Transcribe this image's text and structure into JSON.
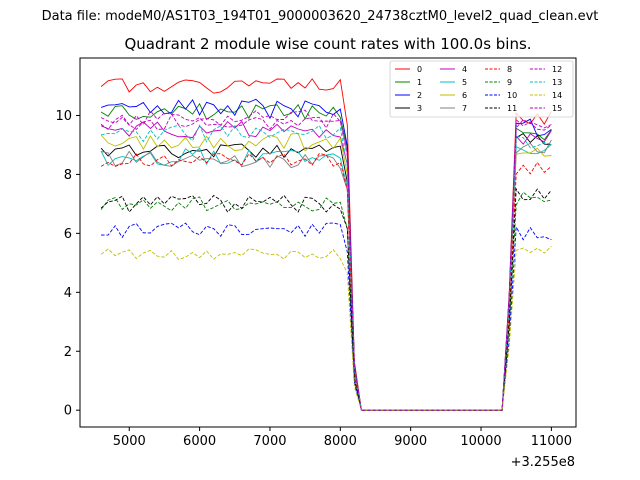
{
  "figure": {
    "suptitle": "Data file: modeM0/AS1T03_194T01_9000003620_24738cztM0_level2_quad_clean.evt"
  },
  "chart_data": {
    "type": "line",
    "title": "Quadrant 2 module wise count rates with 100.0s bins.",
    "xlabel": "",
    "ylabel": "",
    "x_offset_label": "+3.255e8",
    "xlim": [
      4300,
      11350
    ],
    "ylim": [
      -0.57,
      11.95
    ],
    "xticks": [
      5000,
      6000,
      7000,
      8000,
      9000,
      10000,
      11000
    ],
    "yticks": [
      0,
      2,
      4,
      6,
      8,
      10
    ],
    "grid": false,
    "legend_position": "top-right",
    "x": {
      "start": 4600,
      "step": 100,
      "count": 65
    },
    "series": [
      {
        "name": "0",
        "color": "#ff0000",
        "dash": "solid",
        "level": 11.0,
        "noise": 0.25,
        "end_level": 9.9
      },
      {
        "name": "1",
        "color": "#008000",
        "dash": "solid",
        "level": 10.1,
        "noise": 0.3,
        "end_level": 9.4
      },
      {
        "name": "2",
        "color": "#0000ff",
        "dash": "solid",
        "level": 10.2,
        "noise": 0.35,
        "end_level": 9.6
      },
      {
        "name": "3",
        "color": "#000000",
        "dash": "solid",
        "level": 8.8,
        "noise": 0.25,
        "end_level": 9.2
      },
      {
        "name": "4",
        "color": "#bf00bf",
        "dash": "solid",
        "level": 9.5,
        "noise": 0.3,
        "end_level": 9.3
      },
      {
        "name": "5",
        "color": "#00bfbf",
        "dash": "solid",
        "level": 8.6,
        "noise": 0.3,
        "end_level": 9.0
      },
      {
        "name": "6",
        "color": "#bfbf00",
        "dash": "solid",
        "level": 9.1,
        "noise": 0.3,
        "end_level": 8.8
      },
      {
        "name": "7",
        "color": "#808080",
        "dash": "solid",
        "level": 8.5,
        "noise": 0.3,
        "end_level": 8.9
      },
      {
        "name": "8",
        "color": "#ff0000",
        "dash": "dashed",
        "level": 8.5,
        "noise": 0.25,
        "end_level": 8.2
      },
      {
        "name": "9",
        "color": "#008000",
        "dash": "dashed",
        "level": 7.0,
        "noise": 0.25,
        "end_level": 7.2
      },
      {
        "name": "10",
        "color": "#0000ff",
        "dash": "dashed",
        "level": 6.1,
        "noise": 0.25,
        "end_level": 6.0
      },
      {
        "name": "11",
        "color": "#000000",
        "dash": "dashed",
        "level": 7.0,
        "noise": 0.3,
        "end_level": 7.3
      },
      {
        "name": "12",
        "color": "#bf00bf",
        "dash": "dashed",
        "level": 9.8,
        "noise": 0.3,
        "end_level": 9.7
      },
      {
        "name": "13",
        "color": "#00bfbf",
        "dash": "dashed",
        "level": 9.4,
        "noise": 0.3,
        "end_level": 9.2
      },
      {
        "name": "14",
        "color": "#bfbf00",
        "dash": "dashed",
        "level": 5.3,
        "noise": 0.2,
        "end_level": 5.4
      },
      {
        "name": "15",
        "color": "#bf00bf",
        "dash": "dashed",
        "level": 9.9,
        "noise": 0.3,
        "end_level": 9.6
      }
    ]
  }
}
